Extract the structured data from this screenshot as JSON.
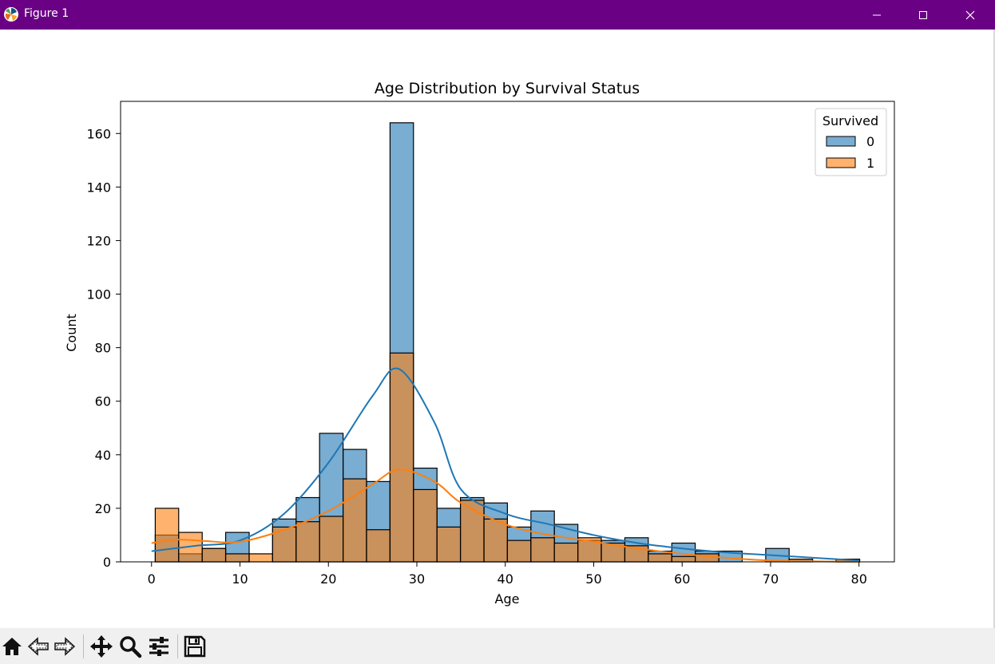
{
  "window": {
    "title": "Figure 1",
    "titlebar_color": "#6a0084"
  },
  "toolbar": {
    "tools": [
      "home-icon",
      "back-icon",
      "forward-icon",
      "pan-icon",
      "zoom-icon",
      "configure-icon",
      "save-icon"
    ]
  },
  "chart_data": {
    "type": "histogram",
    "title": "Age Distribution by Survival Status",
    "xlabel": "Age",
    "ylabel": "Count",
    "xlim": [
      -3.5,
      84
    ],
    "ylim": [
      0,
      172
    ],
    "xticks": [
      0,
      10,
      20,
      30,
      40,
      50,
      60,
      70,
      80
    ],
    "yticks": [
      0,
      20,
      40,
      60,
      80,
      100,
      120,
      140,
      160
    ],
    "bin_edges": [
      0.42,
      3.07,
      5.73,
      8.38,
      11.04,
      13.69,
      16.35,
      19.0,
      21.66,
      24.31,
      26.97,
      29.62,
      32.28,
      34.93,
      37.59,
      40.24,
      42.9,
      45.55,
      48.21,
      50.86,
      53.52,
      56.17,
      58.83,
      61.48,
      64.14,
      66.79,
      69.45,
      72.1,
      74.76,
      77.41,
      80.07
    ],
    "legend": {
      "title": "Survived",
      "position": "top-right"
    },
    "series": [
      {
        "name": "0",
        "color": "#1f77b4",
        "values": [
          10,
          3,
          5,
          11,
          0,
          16,
          24,
          48,
          42,
          30,
          164,
          35,
          20,
          24,
          22,
          13,
          19,
          14,
          8,
          8,
          9,
          4,
          7,
          4,
          4,
          0,
          5,
          1,
          0,
          1
        ],
        "kde_x": [
          0,
          5,
          10,
          15,
          20,
          25,
          28,
          32,
          35,
          40,
          45,
          50,
          55,
          60,
          65,
          70,
          75,
          80
        ],
        "kde_y": [
          4,
          6,
          8,
          18,
          37,
          62,
          72,
          52,
          27,
          18,
          14,
          10,
          7,
          5,
          3.5,
          2.5,
          1.5,
          0.5
        ]
      },
      {
        "name": "1",
        "color": "#ff7f0e",
        "values": [
          20,
          11,
          5,
          3,
          3,
          13,
          15,
          17,
          31,
          12,
          78,
          27,
          13,
          23,
          16,
          8,
          9,
          7,
          9,
          7,
          6,
          3,
          2,
          3,
          0,
          0,
          0,
          0,
          0,
          1
        ],
        "kde_x": [
          0,
          3,
          6,
          10,
          15,
          20,
          25,
          28,
          32,
          35,
          40,
          45,
          50,
          55,
          60,
          65,
          70,
          75,
          80
        ],
        "kde_y": [
          7,
          8.3,
          7.8,
          7.5,
          12,
          19,
          29,
          34.5,
          30,
          22,
          14,
          10,
          7.5,
          5,
          3,
          1.5,
          0.5,
          0.2,
          0
        ]
      }
    ]
  }
}
